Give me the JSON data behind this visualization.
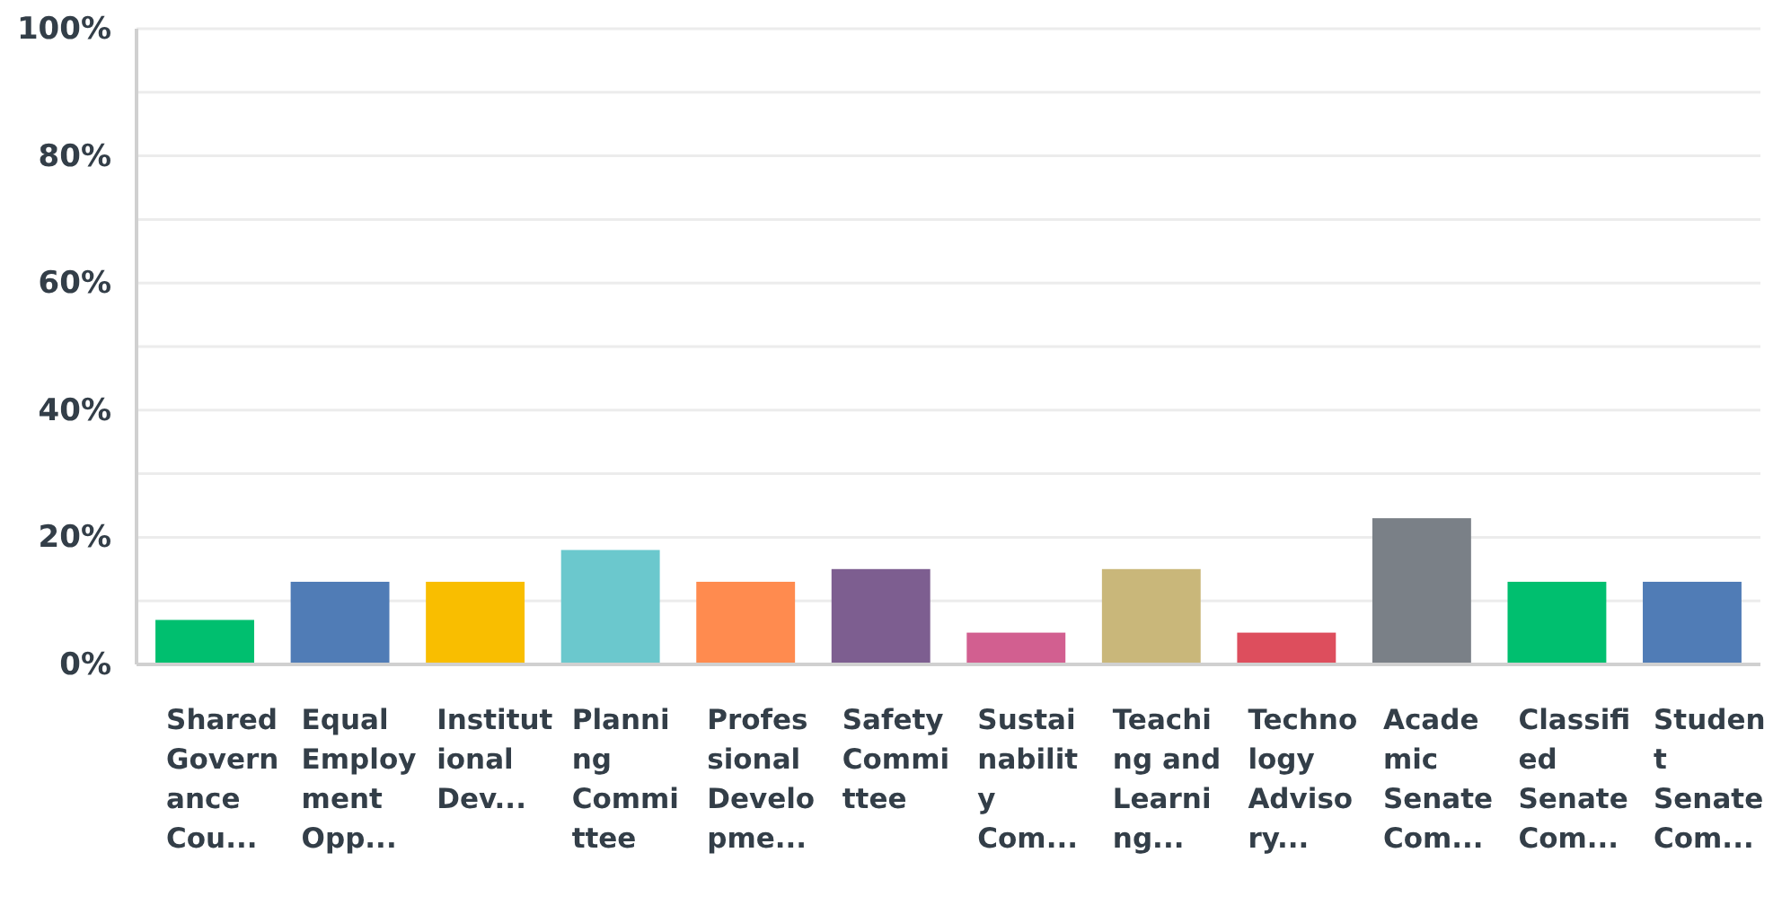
{
  "chart_data": {
    "type": "bar",
    "categories": [
      "Shared Governance Cou...",
      "Equal Employment Opp...",
      "Institutional Dev...",
      "Planning Committee",
      "Professional Developme...",
      "Safety Committee",
      "Sustainability Com...",
      "Teaching and Learning...",
      "Technology Advisory...",
      "Academic Senate Com...",
      "Classified Senate Com...",
      "Student Senate Com..."
    ],
    "values": [
      7,
      13,
      13,
      18,
      13,
      15,
      5,
      15,
      5,
      23,
      13,
      13
    ],
    "colors": [
      "#00bf6f",
      "#507cb6",
      "#f9be00",
      "#6bc8cd",
      "#ff8b4f",
      "#7d5e90",
      "#d25f90",
      "#c9b77a",
      "#dd4e5d",
      "#7a8087",
      "#00bf6f",
      "#507cb6"
    ],
    "ylim": [
      0,
      100
    ],
    "yticks": [
      {
        "value": 0,
        "label": "0%"
      },
      {
        "value": 10,
        "label": null
      },
      {
        "value": 20,
        "label": "20%"
      },
      {
        "value": 30,
        "label": null
      },
      {
        "value": 40,
        "label": "40%"
      },
      {
        "value": 50,
        "label": null
      },
      {
        "value": 60,
        "label": "60%"
      },
      {
        "value": 70,
        "label": null
      },
      {
        "value": 80,
        "label": "80%"
      },
      {
        "value": 90,
        "label": null
      },
      {
        "value": 100,
        "label": "100%"
      }
    ],
    "grid": "y"
  }
}
